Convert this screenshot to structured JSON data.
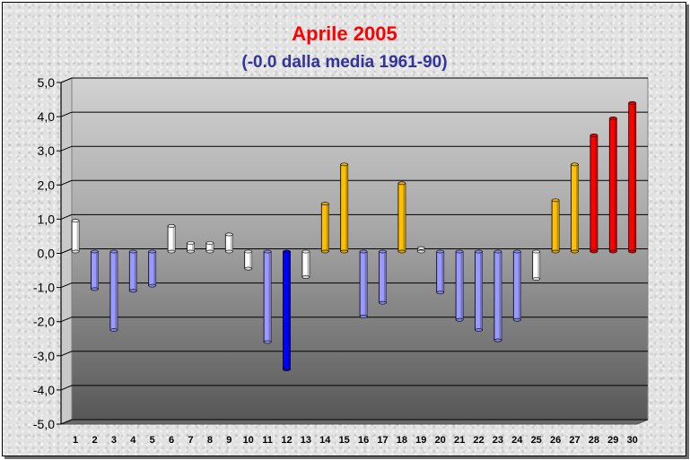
{
  "chart_data": {
    "type": "bar",
    "title": "Aprile 2005",
    "subtitle": "(-0.0 dalla media 1961-90)",
    "xlabel": "",
    "ylabel": "",
    "ylim": [
      -5,
      5
    ],
    "yticks": [
      "5,0",
      "4,0",
      "3,0",
      "2,0",
      "1,0",
      "0,0",
      "-1,0",
      "-2,0",
      "-3,0",
      "-4,0",
      "-5,0"
    ],
    "grid": true,
    "legend": "none",
    "categories": [
      "1",
      "2",
      "3",
      "4",
      "5",
      "6",
      "7",
      "8",
      "9",
      "10",
      "11",
      "12",
      "13",
      "14",
      "15",
      "16",
      "17",
      "18",
      "19",
      "20",
      "21",
      "22",
      "23",
      "24",
      "25",
      "26",
      "27",
      "28",
      "29",
      "30"
    ],
    "values": [
      0.9,
      -1.1,
      -2.3,
      -1.15,
      -1.0,
      0.75,
      0.25,
      0.25,
      0.5,
      -0.5,
      -2.65,
      -3.45,
      -0.75,
      1.4,
      2.55,
      -1.9,
      -1.5,
      2.0,
      0.1,
      -1.2,
      -2.0,
      -2.3,
      -2.6,
      -2.0,
      -0.8,
      1.5,
      2.55,
      3.4,
      3.9,
      4.35
    ],
    "colors": {
      "title": "#ff0000",
      "subtitle": "#333399",
      "white_bar": "#ffffff",
      "blue_bar": "#9999ff",
      "dark_blue_bar": "#0000ff",
      "gold_bar": "#ffc000",
      "red_bar": "#ff0000"
    }
  }
}
